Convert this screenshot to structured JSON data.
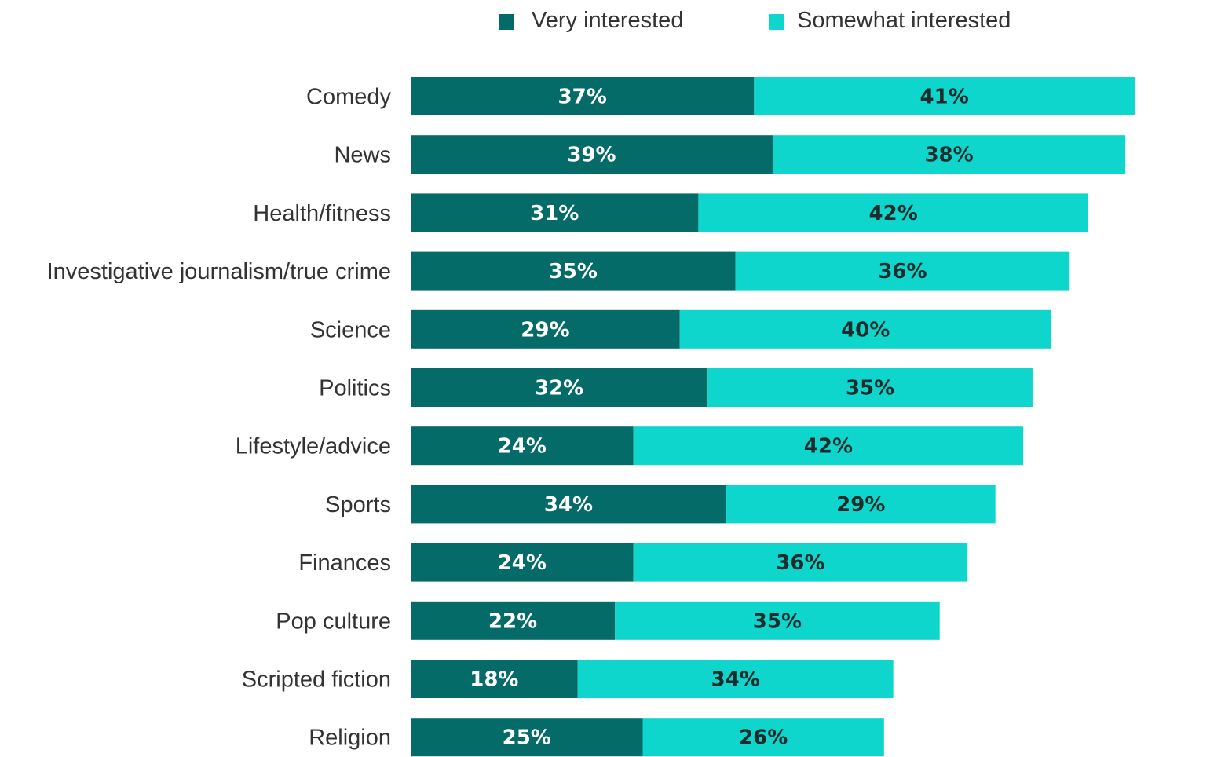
{
  "chart_data": {
    "type": "bar",
    "orientation": "horizontal",
    "stacked": true,
    "xlim": [
      0,
      80
    ],
    "grid": false,
    "legend_position": "top",
    "title": "",
    "xlabel": "",
    "ylabel": "",
    "categories": [
      "Comedy",
      "News",
      "Health/fitness",
      "Investigative journalism/true crime",
      "Science",
      "Politics",
      "Lifestyle/advice",
      "Sports",
      "Finances",
      "Pop culture",
      "Scripted fiction",
      "Religion"
    ],
    "series": [
      {
        "name": "Very interested",
        "color": "#056b69",
        "label_color": "#ffffff",
        "values": [
          37,
          39,
          31,
          35,
          29,
          32,
          24,
          34,
          24,
          22,
          18,
          25
        ],
        "labels": [
          "37%",
          "39%",
          "31%",
          "35%",
          "29%",
          "32%",
          "24%",
          "34%",
          "24%",
          "22%",
          "18%",
          "25%"
        ]
      },
      {
        "name": "Somewhat interested",
        "color": "#0fd6cc",
        "label_color": "#1c2b2b",
        "values": [
          41,
          38,
          42,
          36,
          40,
          35,
          42,
          29,
          36,
          35,
          34,
          26
        ],
        "labels": [
          "41%",
          "38%",
          "42%",
          "36%",
          "40%",
          "35%",
          "42%",
          "29%",
          "36%",
          "35%",
          "34%",
          "26%"
        ]
      }
    ]
  }
}
